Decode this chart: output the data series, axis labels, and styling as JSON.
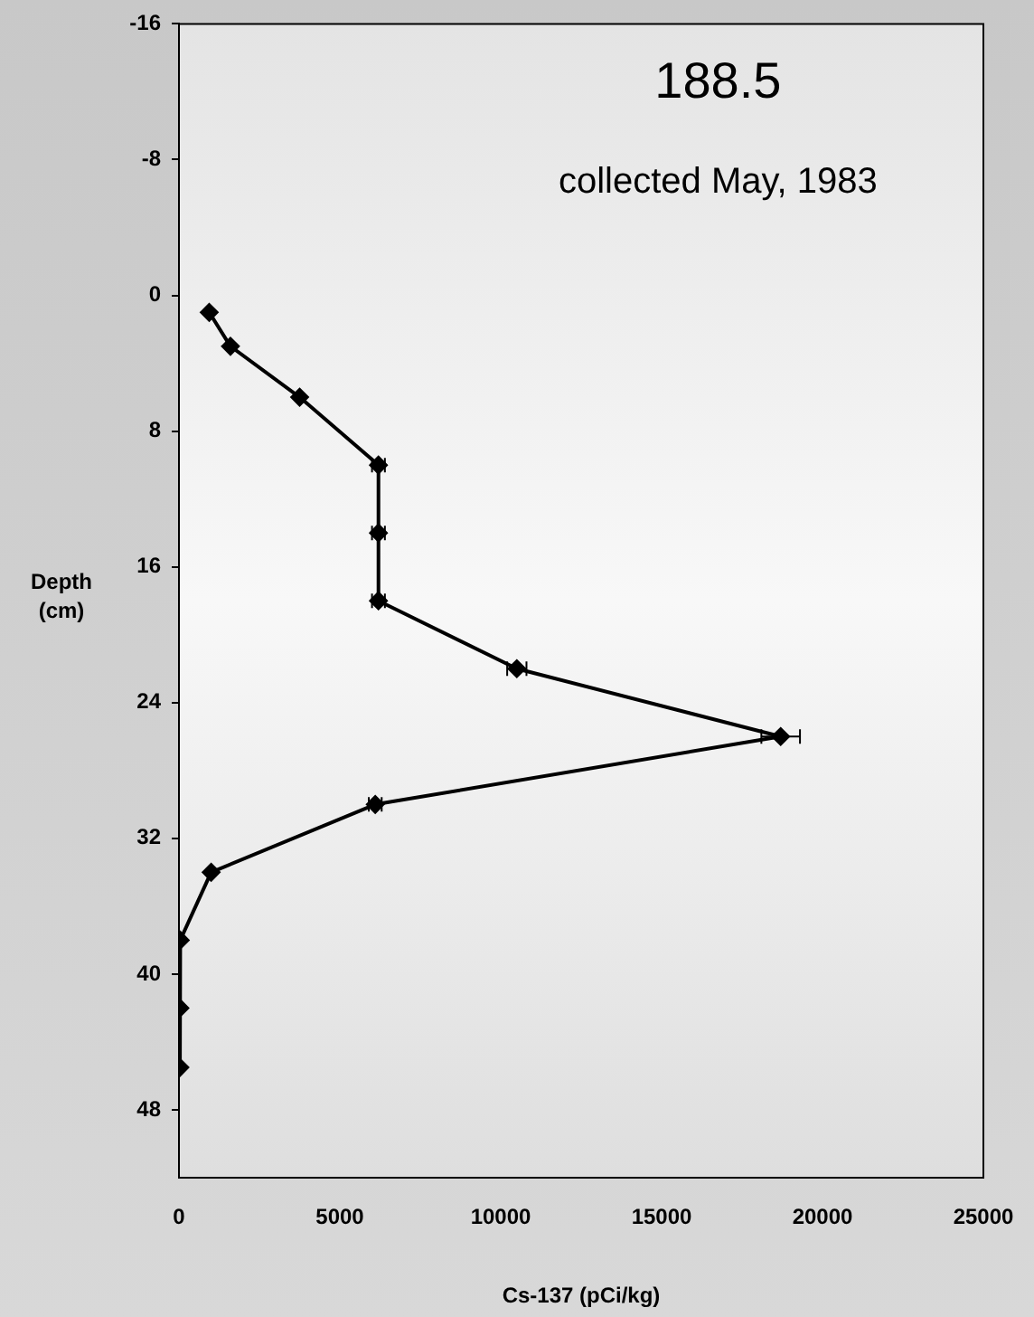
{
  "chart_data": {
    "type": "line",
    "title": "188.5",
    "subtitle": "collected May, 1983",
    "xlabel": "Cs-137 (pCi/kg)",
    "ylabel": "Depth (cm)",
    "series": [
      {
        "color": "#000000",
        "x": [
          940,
          1600,
          3750,
          6200,
          6200,
          6200,
          10500,
          18700,
          6100,
          1000,
          40,
          30,
          30
        ],
        "values": [
          1,
          3,
          6,
          10,
          14,
          18,
          22,
          26,
          30,
          34,
          38,
          42,
          45.5
        ],
        "xerrors": [
          null,
          null,
          null,
          200,
          200,
          200,
          300,
          600,
          200,
          null,
          null,
          null,
          null
        ]
      }
    ],
    "xlim": [
      0,
      25000
    ],
    "xticks": [
      0,
      5000,
      10000,
      15000,
      20000,
      25000
    ],
    "ylim": [
      52,
      -16
    ],
    "yticks": [
      -16,
      -8,
      0,
      8,
      16,
      24,
      32,
      40,
      48
    ],
    "grid": false,
    "legend": false,
    "marker": "diamond",
    "line_style": "solid"
  }
}
